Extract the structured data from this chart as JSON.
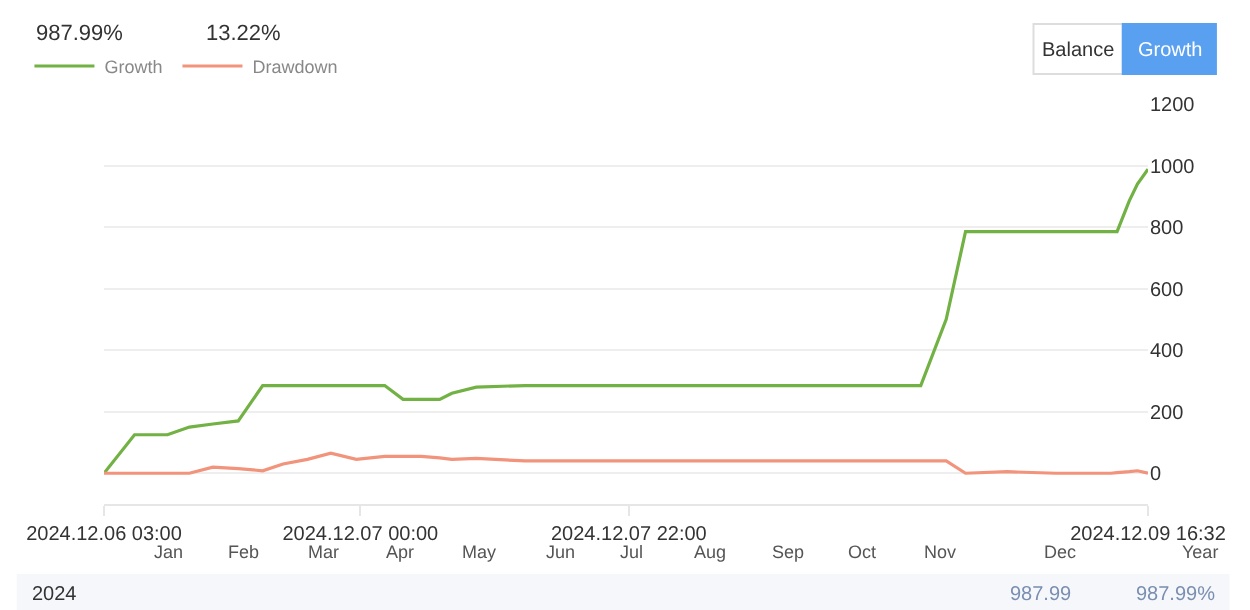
{
  "chart_data": {
    "type": "line",
    "x": [
      "2024-12-06T03:00",
      "2024-12-06T05:30",
      "2024-12-06T08:12",
      "2024-12-06T10:00",
      "2024-12-06T11:55",
      "2024-12-06T14:00",
      "2024-12-06T16:00",
      "2024-12-06T17:40",
      "2024-12-06T19:40",
      "2024-12-06T21:35",
      "2024-12-06T23:40",
      "2024-12-07T02:00",
      "2024-12-07T03:30",
      "2024-12-07T05:00",
      "2024-12-07T06:30",
      "2024-12-07T07:30",
      "2024-12-07T09:30",
      "2024-12-07T13:30",
      "2024-12-08T21:55",
      "2024-12-09T00:00",
      "2024-12-09T01:35",
      "2024-12-09T05:00",
      "2024-12-09T09:00",
      "2024-12-09T13:30",
      "2024-12-09T14:00",
      "2024-12-09T15:00",
      "2024-12-09T15:40",
      "2024-12-09T16:32"
    ],
    "series": [
      {
        "name": "Growth",
        "color": "#72b144",
        "values": [
          0,
          125,
          125,
          150,
          160,
          170,
          285,
          285,
          285,
          285,
          285,
          285,
          240,
          240,
          240,
          260,
          280,
          285,
          285,
          500,
          785,
          785,
          785,
          785,
          785,
          885,
          940,
          988
        ]
      },
      {
        "name": "Drawdown",
        "color": "#f2937c",
        "values": [
          0,
          0,
          0,
          0,
          20,
          15,
          8,
          30,
          45,
          65,
          45,
          55,
          55,
          55,
          50,
          45,
          48,
          40,
          40,
          40,
          0,
          5,
          0,
          0,
          2,
          5,
          8,
          0
        ]
      }
    ],
    "xlim": [
      "2024-12-06T03:00",
      "2024-12-09T16:32"
    ],
    "xticks": [
      {
        "value": "2024-12-06T03:00",
        "label": "2024.12.06 03:00"
      },
      {
        "value": "2024-12-07T00:00",
        "label": "2024.12.07 00:00"
      },
      {
        "value": "2024-12-07T22:00",
        "label": "2024.12.07 22:00"
      },
      {
        "value": "2024-12-09T16:32",
        "label": "2024.12.09 16:32"
      }
    ],
    "ylim": [
      -100,
      1200
    ],
    "yticks": [
      0,
      200,
      400,
      600,
      800,
      1000,
      1200
    ],
    "grid": "y",
    "legend": "top left",
    "marker": "none",
    "line_style": "solid",
    "annotations": [
      "987.99%",
      "13.22%",
      "Balance",
      "Growth",
      "Jan",
      "Feb",
      "Mar",
      "Apr",
      "May",
      "Jun",
      "Jul",
      "Aug",
      "Sep",
      "Oct",
      "Nov",
      "Dec",
      "Year",
      "2024",
      "987.99",
      "987.99%"
    ]
  }
}
